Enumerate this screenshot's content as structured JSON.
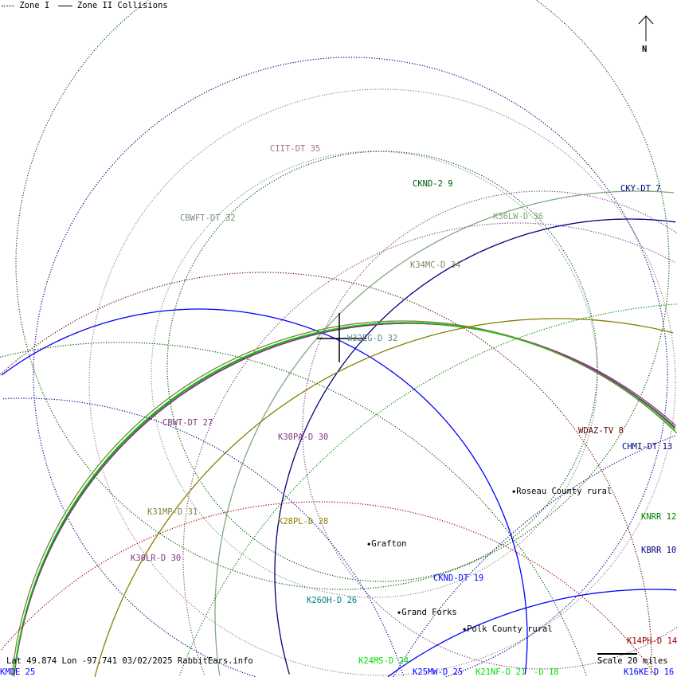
{
  "legend": {
    "zone1": "Zone I",
    "zone2": "Zone II Collisions"
  },
  "compass": {
    "label": "N"
  },
  "footer": {
    "status": "Lat 49.874 Lon -97.741 03/02/2025 RabbitEars.info",
    "scale": "Scale 20 miles"
  },
  "stations": [
    {
      "label": "CIIT-DT 35",
      "color": "#a07878"
    },
    {
      "label": "CKND-2 9",
      "color": "#005800"
    },
    {
      "label": "CKY-DT 7",
      "color": "#000080"
    },
    {
      "label": "CBWFT-DT 32",
      "color": "#789078"
    },
    {
      "label": "K36LW-D 36",
      "color": "#80a880"
    },
    {
      "label": "K34MC-D 34",
      "color": "#888060"
    },
    {
      "label": "W32EG-D 32",
      "color": "#608888"
    },
    {
      "label": "CBWT-DT 27",
      "color": "#803880"
    },
    {
      "label": "K30PA-D 30",
      "color": "#803880"
    },
    {
      "label": "WDAZ-TV 8",
      "color": "#600000"
    },
    {
      "label": "CHMI-DT 13",
      "color": "#000080"
    },
    {
      "label": "K31MP-D 31",
      "color": "#808040"
    },
    {
      "label": "K28PL-D 28",
      "color": "#888000"
    },
    {
      "label": "KNRR 12",
      "color": "#008000"
    },
    {
      "label": "K30LR-D 30",
      "color": "#803880"
    },
    {
      "label": "KBRR 10",
      "color": "#000080"
    },
    {
      "label": "CKND-DT 19",
      "color": "#0000ff"
    },
    {
      "label": "K26OH-D 26",
      "color": "#008080"
    },
    {
      "label": "K14PH-D 14",
      "color": "#a00000"
    },
    {
      "label": "K24MS-D 24",
      "color": "#00dd00"
    },
    {
      "label": "K25MW-D 25",
      "color": "#0000ff"
    },
    {
      "label": "K21NF-D 21",
      "color": "#00dd00"
    },
    {
      "label": "-D 18",
      "color": "#00dd00"
    },
    {
      "label": "K16KE-D 16",
      "color": "#0000ff"
    },
    {
      "label": "KMDE 25",
      "color": "#0000ff"
    }
  ],
  "places": [
    {
      "label": "Roseau County rural"
    },
    {
      "label": "Grafton"
    },
    {
      "label": "Grand Forks"
    },
    {
      "label": "Polk County rural"
    }
  ]
}
